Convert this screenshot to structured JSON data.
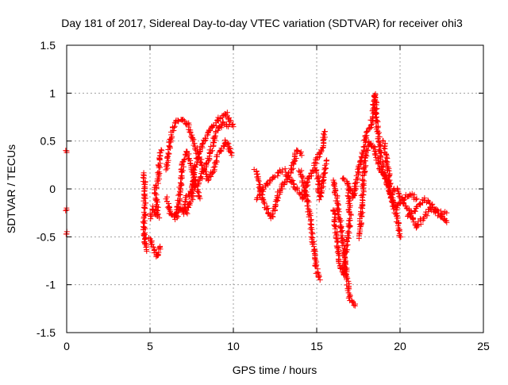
{
  "chart_data": {
    "type": "scatter",
    "title": "Day 181 of 2017, Sidereal Day-to-day VTEC variation (SDTVAR) for receiver ohi3",
    "xlabel": "GPS time / hours",
    "ylabel": "SDTVAR / TECUs",
    "xlim": [
      0,
      25
    ],
    "ylim": [
      -1.5,
      1.5
    ],
    "xticks": [
      0,
      5,
      10,
      15,
      20,
      25
    ],
    "yticks": [
      -1.5,
      -1,
      -0.5,
      0,
      0.5,
      1,
      1.5
    ],
    "xtick_labels": [
      "0",
      "5",
      "10",
      "15",
      "20",
      "25"
    ],
    "ytick_labels": [
      "-1.5",
      "-1",
      "-0.5",
      "0",
      "0.5",
      "1",
      "1.5"
    ],
    "grid": true,
    "marker": "+",
    "color": "#ff0000",
    "tracks": [
      [
        [
          0,
          0.4
        ],
        [
          0,
          0.38
        ]
      ],
      [
        [
          0,
          -0.2
        ],
        [
          0,
          -0.22
        ]
      ],
      [
        [
          0,
          -0.45
        ],
        [
          0,
          -0.47
        ]
      ],
      [
        [
          4.6,
          0.15
        ],
        [
          4.7,
          0.0
        ],
        [
          4.65,
          -0.4
        ],
        [
          4.7,
          -0.55
        ],
        [
          4.8,
          -0.65
        ]
      ],
      [
        [
          5.0,
          -0.5
        ],
        [
          5.2,
          -0.6
        ],
        [
          5.4,
          -0.7
        ],
        [
          5.6,
          -0.6
        ]
      ],
      [
        [
          5.0,
          -0.3
        ],
        [
          5.2,
          -0.2
        ],
        [
          5.5,
          -0.3
        ],
        [
          5.3,
          0.0
        ],
        [
          5.5,
          0.1
        ],
        [
          5.6,
          0.35
        ],
        [
          5.7,
          0.4
        ]
      ],
      [
        [
          6.0,
          -0.1
        ],
        [
          6.2,
          -0.25
        ],
        [
          6.5,
          -0.3
        ],
        [
          6.8,
          -0.2
        ],
        [
          7.2,
          -0.25
        ],
        [
          7.5,
          -0.1
        ],
        [
          7.6,
          0.1
        ],
        [
          7.8,
          0.3
        ],
        [
          8.2,
          0.5
        ],
        [
          8.6,
          0.6
        ],
        [
          9.0,
          0.7
        ],
        [
          9.5,
          0.8
        ],
        [
          9.8,
          0.7
        ],
        [
          10,
          0.65
        ]
      ],
      [
        [
          6.0,
          0.2
        ],
        [
          6.2,
          0.5
        ],
        [
          6.5,
          0.7
        ],
        [
          6.8,
          0.72
        ],
        [
          7.2,
          0.7
        ],
        [
          7.5,
          0.55
        ],
        [
          7.8,
          0.4
        ],
        [
          8.2,
          0.2
        ],
        [
          8.5,
          0.1
        ],
        [
          8.8,
          0.2
        ],
        [
          9.2,
          0.4
        ],
        [
          9.6,
          0.5
        ],
        [
          9.9,
          0.35
        ]
      ],
      [
        [
          6.6,
          -0.3
        ],
        [
          6.8,
          0.0
        ],
        [
          7.0,
          0.3
        ],
        [
          7.2,
          0.4
        ],
        [
          7.5,
          0.2
        ],
        [
          7.8,
          0.0
        ],
        [
          8.0,
          -0.1
        ]
      ],
      [
        [
          7.0,
          -0.25
        ],
        [
          7.2,
          -0.1
        ],
        [
          7.6,
          0.0
        ],
        [
          8.0,
          0.1
        ],
        [
          8.5,
          0.3
        ],
        [
          9.0,
          0.6
        ],
        [
          9.4,
          0.7
        ],
        [
          9.7,
          0.65
        ]
      ],
      [
        [
          11.3,
          0.2
        ],
        [
          11.5,
          0.1
        ],
        [
          11.7,
          -0.1
        ],
        [
          12,
          -0.2
        ],
        [
          12.3,
          -0.3
        ],
        [
          12.5,
          -0.2
        ],
        [
          12.8,
          0.0
        ],
        [
          13.2,
          0.1
        ],
        [
          13.5,
          0.2
        ],
        [
          13.8,
          0.4
        ],
        [
          14.1,
          0.35
        ]
      ],
      [
        [
          11.4,
          -0.1
        ],
        [
          11.8,
          0.0
        ],
        [
          12.2,
          0.1
        ],
        [
          12.6,
          0.15
        ],
        [
          13,
          0.2
        ],
        [
          13.4,
          0.1
        ],
        [
          13.8,
          0.0
        ],
        [
          14.2,
          -0.1
        ],
        [
          14.5,
          0.1
        ],
        [
          14.8,
          0.2
        ],
        [
          15.0,
          0.3
        ],
        [
          15.3,
          0.4
        ],
        [
          15.5,
          0.6
        ]
      ],
      [
        [
          14.0,
          0.2
        ],
        [
          14.3,
          0.0
        ],
        [
          14.6,
          -0.3
        ],
        [
          14.8,
          -0.6
        ],
        [
          15.0,
          -0.85
        ],
        [
          15.2,
          -0.95
        ]
      ],
      [
        [
          15.0,
          0.2
        ],
        [
          15.2,
          -0.1
        ],
        [
          15.4,
          0.1
        ],
        [
          15.6,
          0.3
        ]
      ],
      [
        [
          16.0,
          -0.2
        ],
        [
          16.2,
          -0.5
        ],
        [
          16.4,
          -0.8
        ],
        [
          16.6,
          -0.9
        ],
        [
          16.8,
          -0.6
        ],
        [
          17.0,
          -0.3
        ],
        [
          16.9,
          0.0
        ]
      ],
      [
        [
          16.0,
          0.1
        ],
        [
          16.3,
          -0.2
        ],
        [
          16.6,
          -0.6
        ],
        [
          16.8,
          -0.9
        ],
        [
          17.0,
          -1.15
        ],
        [
          17.3,
          -1.22
        ]
      ],
      [
        [
          16.5,
          0.1
        ],
        [
          16.8,
          0.1
        ],
        [
          17.2,
          -0.1
        ],
        [
          17.5,
          0.2
        ],
        [
          17.8,
          0.4
        ],
        [
          18.0,
          0.6
        ],
        [
          18.2,
          0.65
        ],
        [
          18.4,
          0.8
        ],
        [
          18.5,
          1.0
        ],
        [
          18.6,
          0.7
        ],
        [
          18.8,
          0.4
        ],
        [
          19.0,
          0.2
        ],
        [
          19.3,
          0.0
        ],
        [
          19.5,
          -0.1
        ],
        [
          19.8,
          -0.3
        ],
        [
          20,
          -0.5
        ]
      ],
      [
        [
          17.6,
          -0.5
        ],
        [
          17.7,
          -0.2
        ],
        [
          17.8,
          0.1
        ],
        [
          17.9,
          0.3
        ],
        [
          18.2,
          0.5
        ],
        [
          18.5,
          0.4
        ],
        [
          18.8,
          0.2
        ],
        [
          19.2,
          0.1
        ],
        [
          19.5,
          -0.1
        ],
        [
          19.8,
          -0.2
        ],
        [
          20.2,
          -0.1
        ],
        [
          20.6,
          -0.05
        ],
        [
          21,
          -0.1
        ]
      ],
      [
        [
          19.5,
          -0.05
        ],
        [
          19.8,
          0.0
        ],
        [
          20.2,
          -0.15
        ],
        [
          20.6,
          -0.25
        ],
        [
          21,
          -0.4
        ],
        [
          21.4,
          -0.3
        ],
        [
          21.8,
          -0.2
        ],
        [
          22.2,
          -0.25
        ],
        [
          22.6,
          -0.3
        ],
        [
          22.8,
          -0.35
        ]
      ],
      [
        [
          20.5,
          -0.3
        ],
        [
          21,
          -0.2
        ],
        [
          21.5,
          -0.1
        ],
        [
          22,
          -0.2
        ],
        [
          22.5,
          -0.25
        ],
        [
          22.8,
          -0.25
        ]
      ],
      [
        [
          19,
          0.5
        ],
        [
          19.2,
          0.3
        ],
        [
          19.4,
          0.05
        ]
      ]
    ]
  }
}
